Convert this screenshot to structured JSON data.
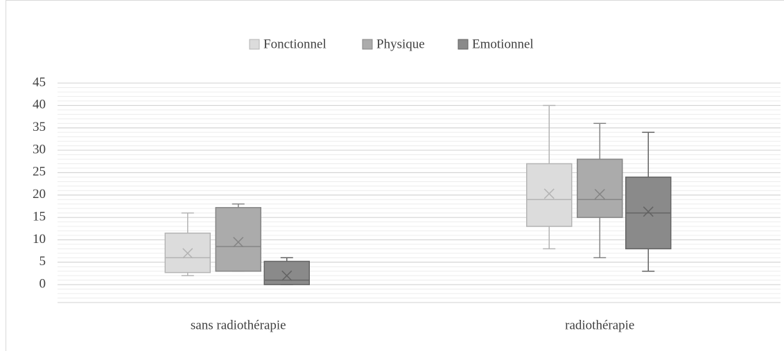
{
  "chart_data": {
    "type": "box",
    "categories": [
      "sans radiothérapie",
      "radiothérapie"
    ],
    "series": [
      {
        "name": "Fonctionnel",
        "color": "#dcdcdc",
        "stroke": "#b4b4b4",
        "min": [
          2,
          8
        ],
        "q1": [
          2.7,
          13
        ],
        "median": [
          6,
          19
        ],
        "q3": [
          11.5,
          27
        ],
        "max": [
          16,
          40
        ],
        "mean": [
          7,
          20.3
        ]
      },
      {
        "name": "Physique",
        "color": "#ababab",
        "stroke": "#858585",
        "min": [
          3,
          6
        ],
        "q1": [
          3,
          15
        ],
        "median": [
          8.5,
          19
        ],
        "q3": [
          17.2,
          28
        ],
        "max": [
          18,
          36
        ],
        "mean": [
          9.5,
          20.2
        ]
      },
      {
        "name": "Emotionnel",
        "color": "#8a8a8a",
        "stroke": "#636363",
        "min": [
          0,
          3
        ],
        "q1": [
          0,
          8
        ],
        "median": [
          1,
          16
        ],
        "q3": [
          5.2,
          24
        ],
        "max": [
          6,
          34
        ],
        "mean": [
          2,
          16.3
        ]
      }
    ],
    "ylim": [
      -4,
      45
    ],
    "yticks": [
      0,
      5,
      10,
      15,
      20,
      25,
      30,
      35,
      40,
      45
    ],
    "grid": true,
    "minor_grid": true,
    "legend": "top"
  }
}
